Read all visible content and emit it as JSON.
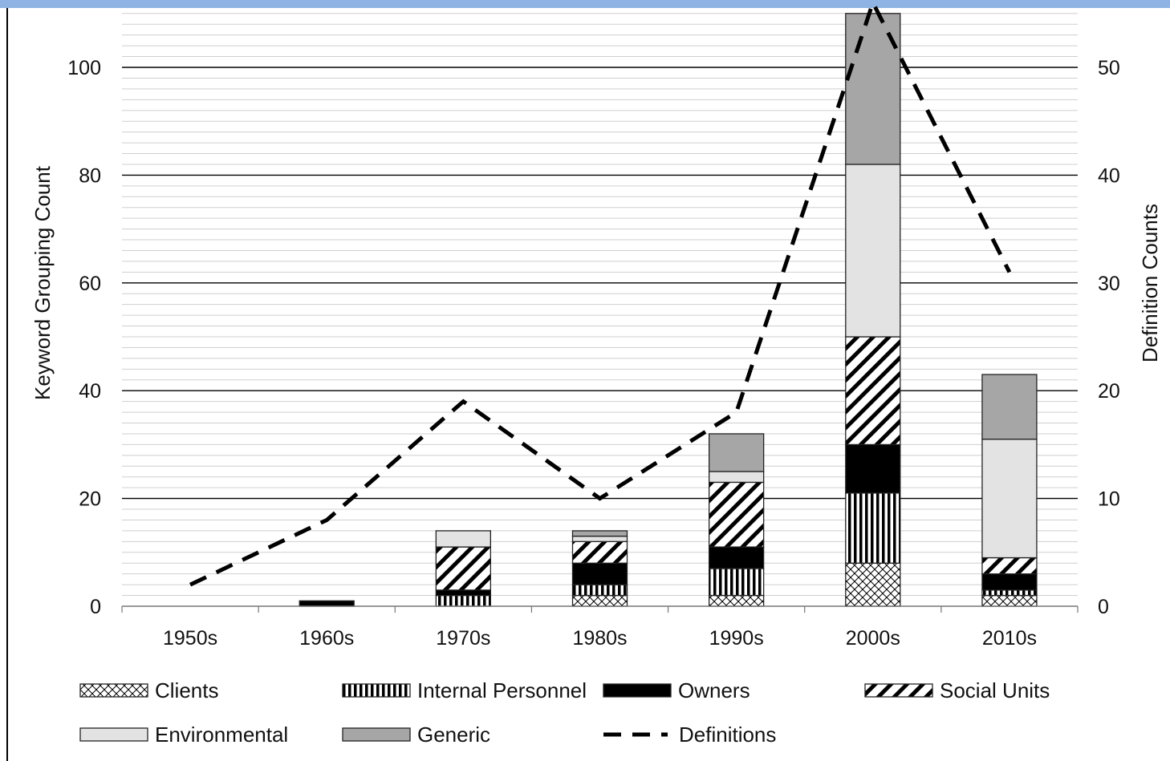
{
  "colors": {
    "top_bar": "#8fb4e3",
    "grid_major": "#000000",
    "grid_minor": "#cfcfcf",
    "Clients": "#ffffff",
    "Internal Personnel": "#ffffff",
    "Owners": "#000000",
    "Social Units": "#ffffff",
    "Environmental": "#e3e3e3",
    "Generic": "#a6a6a6",
    "Definitions": "#000000"
  },
  "chart_data": {
    "type": "bar",
    "stacked": true,
    "categories": [
      "1950s",
      "1960s",
      "1970s",
      "1980s",
      "1990s",
      "2000s",
      "2010s"
    ],
    "series": [
      {
        "name": "Clients",
        "pattern": "crosshatch",
        "values": [
          0,
          0,
          0,
          2,
          2,
          8,
          2
        ]
      },
      {
        "name": "Internal Personnel",
        "pattern": "vertical-stripes",
        "values": [
          0,
          0,
          2,
          2,
          5,
          13,
          1
        ]
      },
      {
        "name": "Owners",
        "pattern": "solid-black",
        "values": [
          0,
          1,
          1,
          4,
          4,
          9,
          3
        ]
      },
      {
        "name": "Social Units",
        "pattern": "diagonal-stripes",
        "values": [
          0,
          0,
          8,
          4,
          12,
          20,
          3
        ]
      },
      {
        "name": "Environmental",
        "pattern": "light-gray",
        "values": [
          0,
          0,
          3,
          1,
          2,
          32,
          22
        ]
      },
      {
        "name": "Generic",
        "pattern": "dark-gray",
        "values": [
          0,
          0,
          0,
          1,
          7,
          28,
          12
        ]
      }
    ],
    "line": {
      "name": "Definitions",
      "axis": "right",
      "style": "dashed",
      "values": [
        2,
        8,
        19,
        10,
        18,
        56,
        31
      ]
    },
    "ylabel": "Keyword Grouping Count",
    "ylabel_right": "Definition Counts",
    "ylim": [
      0,
      110
    ],
    "ylim_right": [
      0,
      55
    ],
    "yticks": [
      0,
      20,
      40,
      60,
      80,
      100
    ],
    "yticks_right": [
      0,
      10,
      20,
      30,
      40,
      50
    ],
    "grid": true,
    "legend": {
      "placement": "bottom",
      "entries": [
        "Clients",
        "Internal Personnel",
        "Owners",
        "Social Units",
        "Environmental",
        "Generic",
        "Definitions"
      ]
    }
  }
}
